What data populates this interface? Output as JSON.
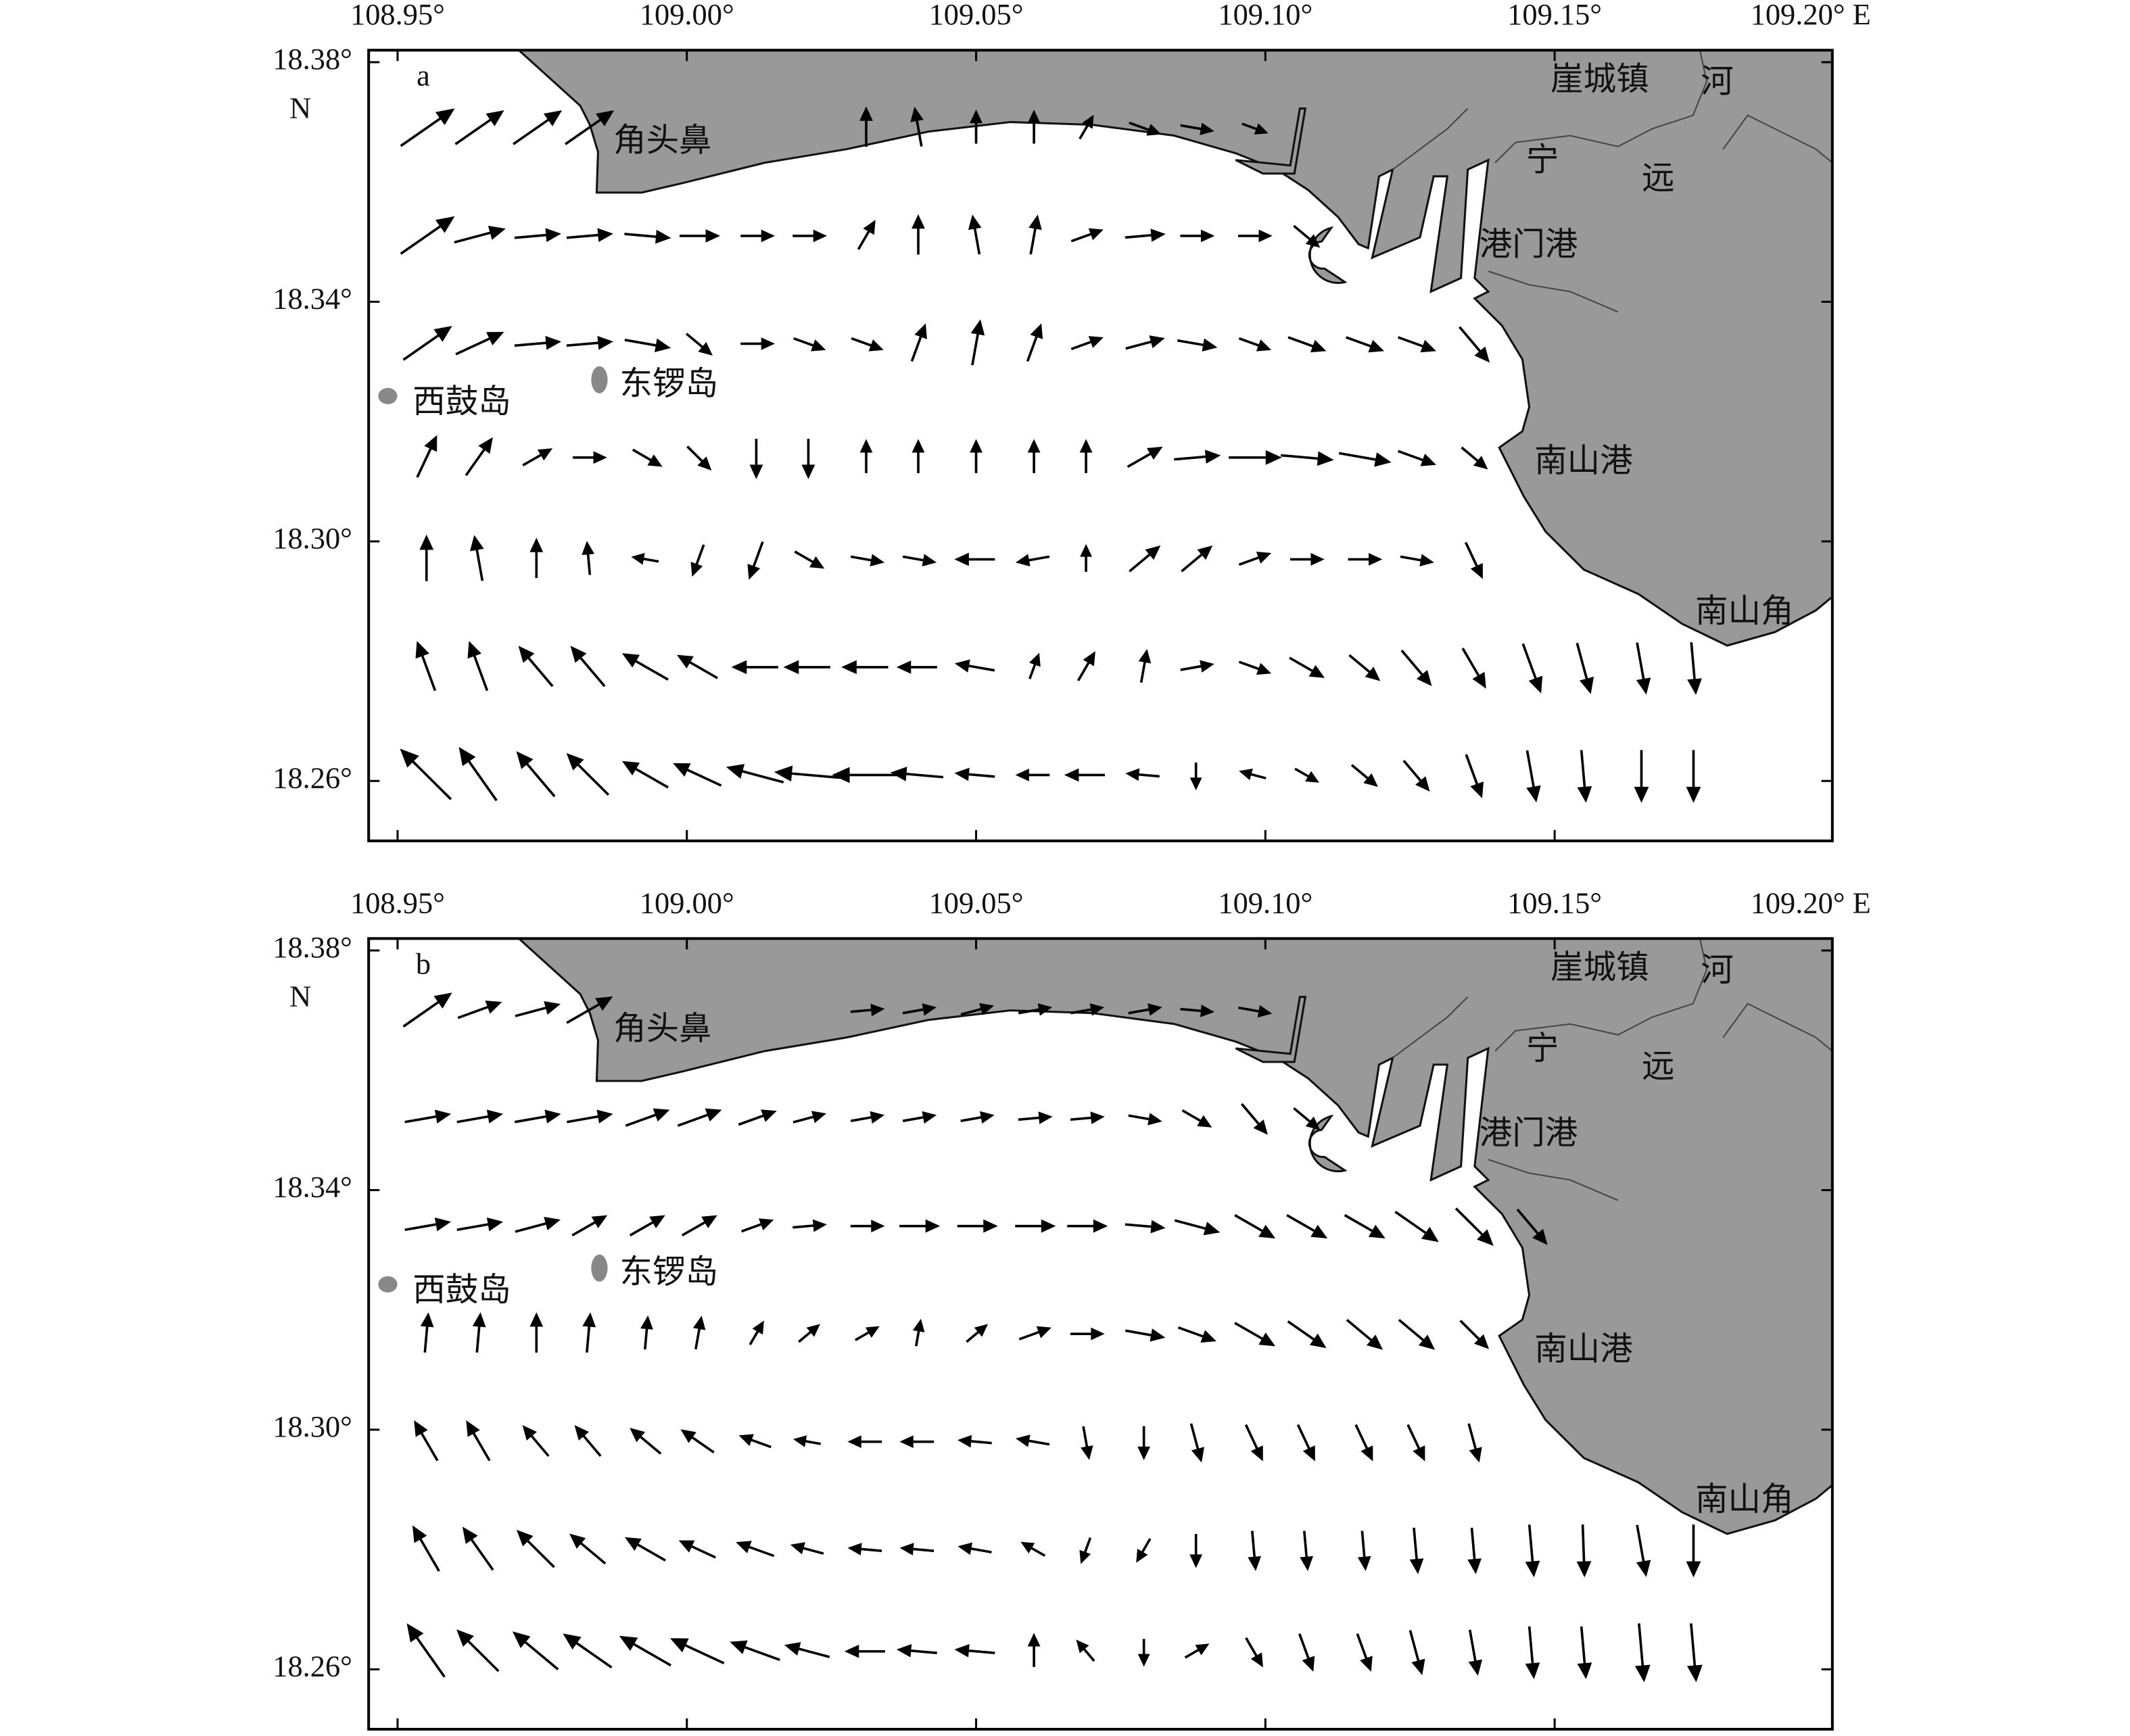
{
  "panels": [
    {
      "label": "a",
      "xlim": [
        108.945,
        109.198
      ],
      "ylim": [
        18.25,
        18.382
      ],
      "xticks": [
        {
          "value": 108.95,
          "label": "108.95°"
        },
        {
          "value": 109.0,
          "label": "109.00°"
        },
        {
          "value": 109.05,
          "label": "109.05°"
        },
        {
          "value": 109.1,
          "label": "109.10°"
        },
        {
          "value": 109.15,
          "label": "109.15°"
        },
        {
          "value": 109.2,
          "label": "109.20° E"
        }
      ],
      "yticks": [
        {
          "value": 18.38,
          "label": "18.38°"
        },
        {
          "value": 18.34,
          "label": "18.34°"
        },
        {
          "value": 18.3,
          "label": "18.30°"
        },
        {
          "value": 18.26,
          "label": "18.26°"
        }
      ],
      "lat_hemisphere": "N",
      "places": [
        {
          "name": "角头鼻",
          "lon": 108.9958,
          "lat": 18.3664
        },
        {
          "name": "崖城镇",
          "lon": 109.1578,
          "lat": 18.3766
        },
        {
          "name": "河",
          "lon": 109.1781,
          "lat": 18.3762
        },
        {
          "name": "宁",
          "lon": 109.1479,
          "lat": 18.3631
        },
        {
          "name": "远",
          "lon": 109.1679,
          "lat": 18.3601
        },
        {
          "name": "港门港",
          "lon": 109.1455,
          "lat": 18.349
        },
        {
          "name": "西鼓岛",
          "lon": 108.9611,
          "lat": 18.3228
        },
        {
          "name": "东锣岛",
          "lon": 108.9969,
          "lat": 18.3258
        },
        {
          "name": "南山港",
          "lon": 109.155,
          "lat": 18.3129
        },
        {
          "name": "南山角",
          "lon": 109.1828,
          "lat": 18.2878
        }
      ],
      "vectors": {
        "lons": [
          108.955,
          108.964,
          108.974,
          108.983,
          108.993,
          109.002,
          109.012,
          109.021,
          109.031,
          109.04,
          109.05,
          109.06,
          109.069,
          109.079,
          109.088,
          109.098,
          109.107,
          109.117,
          109.126,
          109.136,
          109.146,
          109.155,
          109.165,
          109.174
        ],
        "rows": [
          {
            "lat": 18.369,
            "angle": [
              35,
              35,
              35,
              35,
              null,
              null,
              null,
              null,
              90,
              100,
              90,
              90,
              60,
              -20,
              -10,
              -20,
              null,
              null,
              null,
              null,
              null,
              null,
              null,
              null
            ],
            "speed": [
              1.0,
              0.9,
              0.9,
              0.9,
              null,
              null,
              null,
              null,
              0.6,
              0.6,
              0.5,
              0.5,
              0.4,
              0.5,
              0.5,
              0.4,
              null,
              null,
              null,
              null,
              null,
              null,
              null,
              null
            ]
          },
          {
            "lat": 18.351,
            "angle": [
              35,
              15,
              5,
              5,
              -5,
              0,
              0,
              0,
              60,
              90,
              100,
              80,
              20,
              5,
              0,
              0,
              -40,
              null,
              null,
              null,
              null,
              null,
              null,
              null
            ],
            "speed": [
              1.0,
              0.8,
              0.7,
              0.7,
              0.7,
              0.6,
              0.5,
              0.5,
              0.5,
              0.6,
              0.6,
              0.6,
              0.5,
              0.6,
              0.5,
              0.5,
              0.5,
              null,
              null,
              null,
              null,
              null,
              null,
              null
            ]
          },
          {
            "lat": 18.333,
            "angle": [
              35,
              25,
              5,
              5,
              -10,
              -40,
              0,
              -20,
              -20,
              70,
              80,
              70,
              20,
              15,
              -10,
              -20,
              -20,
              -20,
              -20,
              -50,
              null,
              null,
              null,
              null
            ],
            "speed": [
              0.9,
              0.8,
              0.7,
              0.7,
              0.7,
              0.5,
              0.5,
              0.5,
              0.5,
              0.6,
              0.7,
              0.6,
              0.5,
              0.6,
              0.6,
              0.5,
              0.6,
              0.6,
              0.6,
              0.7,
              null,
              null,
              null,
              null
            ]
          },
          {
            "lat": 18.314,
            "angle": [
              65,
              55,
              30,
              0,
              -30,
              -45,
              -90,
              -90,
              90,
              90,
              90,
              90,
              90,
              30,
              5,
              0,
              -5,
              -10,
              -20,
              -40,
              null,
              null,
              null,
              null
            ],
            "speed": [
              0.7,
              0.7,
              0.5,
              0.5,
              0.5,
              0.5,
              0.6,
              0.6,
              0.5,
              0.5,
              0.5,
              0.5,
              0.5,
              0.6,
              0.7,
              0.8,
              0.8,
              0.8,
              0.6,
              0.5,
              null,
              null,
              null,
              null
            ]
          },
          {
            "lat": 18.297,
            "angle": [
              90,
              100,
              90,
              95,
              170,
              -110,
              -110,
              -30,
              -10,
              -10,
              180,
              -170,
              90,
              40,
              40,
              20,
              0,
              0,
              -10,
              -65,
              null,
              null,
              null,
              null
            ],
            "speed": [
              0.7,
              0.7,
              0.6,
              0.5,
              0.4,
              0.5,
              0.6,
              0.5,
              0.5,
              0.5,
              0.6,
              0.5,
              0.4,
              0.6,
              0.6,
              0.5,
              0.5,
              0.5,
              0.5,
              0.6,
              null,
              null,
              null,
              null
            ]
          },
          {
            "lat": 18.279,
            "angle": [
              110,
              110,
              130,
              130,
              150,
              150,
              180,
              180,
              180,
              180,
              170,
              70,
              60,
              80,
              10,
              -20,
              -30,
              -40,
              -50,
              -60,
              -70,
              -75,
              -80,
              -85
            ],
            "speed": [
              0.8,
              0.8,
              0.8,
              0.8,
              0.8,
              0.7,
              0.7,
              0.7,
              0.7,
              0.6,
              0.6,
              0.4,
              0.5,
              0.5,
              0.5,
              0.5,
              0.6,
              0.6,
              0.7,
              0.7,
              0.8,
              0.8,
              0.8,
              0.8
            ]
          },
          {
            "lat": 18.261,
            "angle": [
              135,
              125,
              130,
              135,
              150,
              155,
              165,
              175,
              180,
              175,
              175,
              180,
              180,
              175,
              -90,
              165,
              -30,
              -40,
              -50,
              -70,
              -80,
              -85,
              -90,
              -90
            ],
            "speed": [
              1.1,
              1.0,
              0.9,
              0.9,
              0.8,
              0.8,
              0.9,
              1.0,
              1.0,
              0.8,
              0.6,
              0.5,
              0.6,
              0.5,
              0.4,
              0.4,
              0.4,
              0.5,
              0.6,
              0.7,
              0.8,
              0.8,
              0.8,
              0.8
            ]
          }
        ]
      }
    },
    {
      "label": "b",
      "xlim": [
        108.945,
        109.198
      ],
      "ylim": [
        18.25,
        18.382
      ],
      "xticks": [
        {
          "value": 108.95,
          "label": "108.95°"
        },
        {
          "value": 109.0,
          "label": "109.00°"
        },
        {
          "value": 109.05,
          "label": "109.05°"
        },
        {
          "value": 109.1,
          "label": "109.10°"
        },
        {
          "value": 109.15,
          "label": "109.15°"
        },
        {
          "value": 109.2,
          "label": "109.20° E"
        }
      ],
      "yticks": [
        {
          "value": 18.38,
          "label": "18.38°"
        },
        {
          "value": 18.34,
          "label": "18.34°"
        },
        {
          "value": 18.3,
          "label": "18.30°"
        },
        {
          "value": 18.26,
          "label": "18.26°"
        }
      ],
      "lat_hemisphere": "N",
      "places": [
        {
          "name": "角头鼻",
          "lon": 108.9958,
          "lat": 18.3664
        },
        {
          "name": "崖城镇",
          "lon": 109.1578,
          "lat": 18.3766
        },
        {
          "name": "河",
          "lon": 109.1781,
          "lat": 18.3762
        },
        {
          "name": "宁",
          "lon": 109.1479,
          "lat": 18.3631
        },
        {
          "name": "远",
          "lon": 109.1679,
          "lat": 18.3601
        },
        {
          "name": "港门港",
          "lon": 109.1455,
          "lat": 18.349
        },
        {
          "name": "西鼓岛",
          "lon": 108.9611,
          "lat": 18.3228
        },
        {
          "name": "东锣岛",
          "lon": 108.9969,
          "lat": 18.3258
        },
        {
          "name": "南山港",
          "lon": 109.155,
          "lat": 18.3129
        },
        {
          "name": "南山角",
          "lon": 109.1828,
          "lat": 18.2878
        }
      ],
      "vectors": {
        "lons": [
          108.955,
          108.964,
          108.974,
          108.983,
          108.993,
          109.002,
          109.012,
          109.021,
          109.031,
          109.04,
          109.05,
          109.06,
          109.069,
          109.079,
          109.088,
          109.098,
          109.107,
          109.117,
          109.126,
          109.136,
          109.146,
          109.155,
          109.165,
          109.174
        ],
        "rows": [
          {
            "lat": 18.37,
            "angle": [
              35,
              20,
              15,
              30,
              null,
              null,
              null,
              null,
              5,
              10,
              15,
              10,
              10,
              10,
              -5,
              -10,
              null,
              null,
              null,
              null,
              null,
              null,
              null,
              null
            ],
            "speed": [
              0.9,
              0.7,
              0.7,
              0.8,
              null,
              null,
              null,
              null,
              0.5,
              0.5,
              0.5,
              0.5,
              0.5,
              0.5,
              0.5,
              0.5,
              null,
              null,
              null,
              null,
              null,
              null,
              null,
              null
            ]
          },
          {
            "lat": 18.352,
            "angle": [
              10,
              10,
              10,
              10,
              20,
              20,
              20,
              15,
              10,
              10,
              10,
              5,
              5,
              -10,
              -30,
              -50,
              -40,
              null,
              null,
              null,
              null,
              null,
              null,
              null
            ],
            "speed": [
              0.7,
              0.7,
              0.7,
              0.7,
              0.7,
              0.7,
              0.6,
              0.5,
              0.5,
              0.5,
              0.5,
              0.5,
              0.5,
              0.5,
              0.5,
              0.6,
              0.5,
              null,
              null,
              null,
              null,
              null,
              null,
              null
            ]
          },
          {
            "lat": 18.334,
            "angle": [
              10,
              10,
              15,
              30,
              30,
              30,
              20,
              5,
              0,
              0,
              0,
              0,
              0,
              -5,
              -15,
              -30,
              -30,
              -30,
              -35,
              -45,
              -50,
              null,
              null,
              null
            ],
            "speed": [
              0.7,
              0.7,
              0.7,
              0.6,
              0.6,
              0.6,
              0.5,
              0.5,
              0.5,
              0.6,
              0.6,
              0.6,
              0.6,
              0.6,
              0.7,
              0.7,
              0.7,
              0.7,
              0.8,
              0.8,
              0.7,
              null,
              null,
              null
            ]
          },
          {
            "lat": 18.316,
            "angle": [
              85,
              85,
              90,
              85,
              85,
              80,
              60,
              40,
              30,
              80,
              40,
              20,
              0,
              -10,
              -20,
              -30,
              -35,
              -40,
              -40,
              -45,
              null,
              null,
              null,
              null
            ],
            "speed": [
              0.6,
              0.6,
              0.6,
              0.6,
              0.5,
              0.5,
              0.4,
              0.4,
              0.4,
              0.4,
              0.4,
              0.5,
              0.5,
              0.6,
              0.6,
              0.7,
              0.7,
              0.7,
              0.7,
              0.6,
              null,
              null,
              null,
              null
            ]
          },
          {
            "lat": 18.298,
            "angle": [
              120,
              120,
              130,
              130,
              140,
              145,
              160,
              170,
              180,
              180,
              175,
              170,
              -80,
              -90,
              -75,
              -65,
              -65,
              -65,
              -65,
              -75,
              null,
              null,
              null,
              null
            ],
            "speed": [
              0.7,
              0.7,
              0.6,
              0.6,
              0.6,
              0.6,
              0.5,
              0.4,
              0.5,
              0.5,
              0.5,
              0.5,
              0.5,
              0.5,
              0.6,
              0.6,
              0.6,
              0.6,
              0.6,
              0.6,
              null,
              null,
              null,
              null
            ]
          },
          {
            "lat": 18.28,
            "angle": [
              120,
              125,
              135,
              140,
              150,
              155,
              160,
              165,
              175,
              175,
              170,
              150,
              -110,
              -120,
              -90,
              -85,
              -85,
              -85,
              -85,
              -85,
              -85,
              -88,
              -80,
              -90
            ],
            "speed": [
              0.8,
              0.8,
              0.8,
              0.7,
              0.7,
              0.6,
              0.6,
              0.5,
              0.5,
              0.5,
              0.5,
              0.4,
              0.4,
              0.4,
              0.5,
              0.6,
              0.6,
              0.6,
              0.7,
              0.7,
              0.8,
              0.8,
              0.8,
              0.8
            ]
          },
          {
            "lat": 18.263,
            "angle": [
              125,
              135,
              140,
              145,
              150,
              155,
              160,
              165,
              180,
              175,
              175,
              90,
              130,
              -90,
              30,
              -60,
              -70,
              -70,
              -75,
              -80,
              -85,
              -85,
              -85,
              -85
            ],
            "speed": [
              1.0,
              0.9,
              0.9,
              0.9,
              0.9,
              0.9,
              0.8,
              0.7,
              0.6,
              0.6,
              0.6,
              0.5,
              0.4,
              0.4,
              0.4,
              0.5,
              0.6,
              0.6,
              0.7,
              0.7,
              0.8,
              0.8,
              0.9,
              0.9
            ]
          }
        ]
      }
    }
  ]
}
